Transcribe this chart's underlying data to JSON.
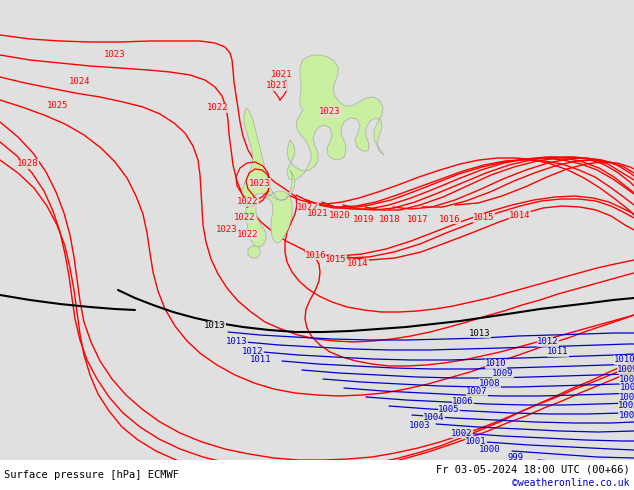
{
  "title_left": "Surface pressure [hPa] ECMWF",
  "title_right": "Fr 03-05-2024 18:00 UTC (00+66)",
  "title_right2": "©weatheronline.co.uk",
  "bg_color": "#e0e0e0",
  "land_color": "#c8f0a0",
  "red_color": "#ff0000",
  "blue_color": "#0000cc",
  "black_color": "#000000",
  "fig_width": 6.34,
  "fig_height": 4.9,
  "dpi": 100
}
